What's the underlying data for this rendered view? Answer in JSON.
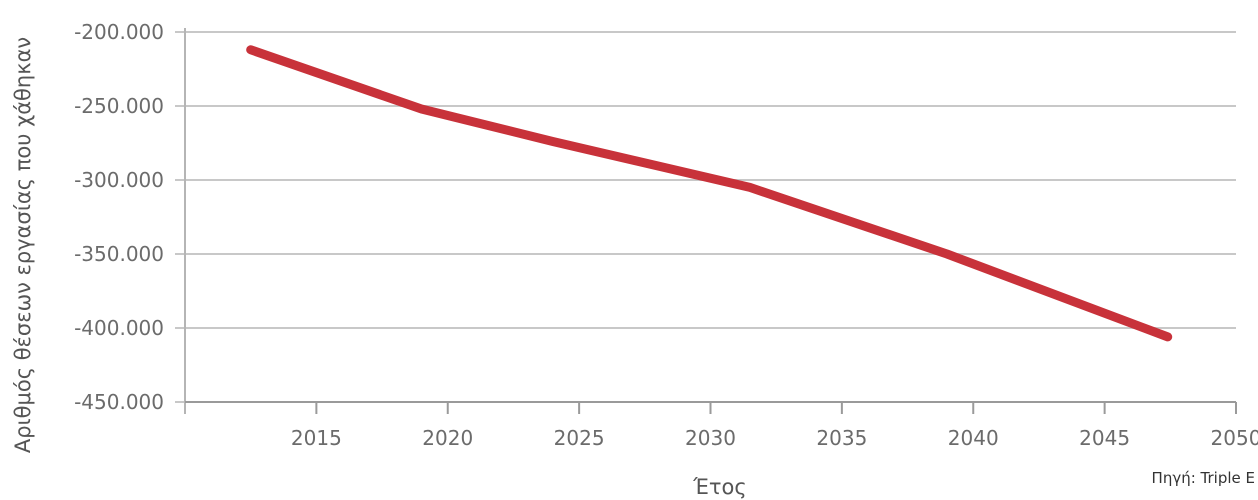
{
  "chart_data": {
    "type": "line",
    "title": "",
    "xlabel": "Έτος",
    "ylabel": "Αριθμός θέσεων εργασίας που χάθηκαν",
    "source": "Πηγή: Triple E",
    "xlim": [
      2010,
      2050
    ],
    "ylim": [
      -450000,
      -200000
    ],
    "x_ticks": [
      2015,
      2020,
      2025,
      2030,
      2035,
      2040,
      2045,
      2050
    ],
    "x_tick_labels": [
      "2015",
      "2020",
      "2025",
      "2030",
      "2035",
      "2040",
      "2045",
      "2050"
    ],
    "y_ticks": [
      -200000,
      -250000,
      -300000,
      -350000,
      -400000,
      -450000
    ],
    "y_tick_labels": [
      "-200.000",
      "-250.000",
      "-300.000",
      "-350.000",
      "-400.000",
      "-450.000"
    ],
    "grid": true,
    "series": [
      {
        "color": "#c8323a",
        "points": [
          {
            "x": 2012.5,
            "y": -212000
          },
          {
            "x": 2019,
            "y": -252000
          },
          {
            "x": 2024,
            "y": -274000
          },
          {
            "x": 2031.5,
            "y": -305000
          },
          {
            "x": 2039,
            "y": -350000
          },
          {
            "x": 2047.4,
            "y": -406000
          }
        ]
      }
    ]
  }
}
